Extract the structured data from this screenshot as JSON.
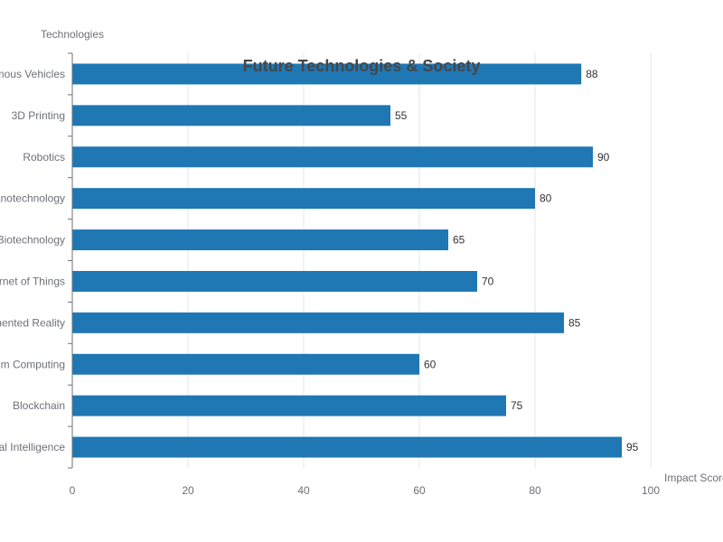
{
  "chart_data": {
    "type": "bar",
    "orientation": "horizontal",
    "title": "Future Technologies & Society",
    "xlabel": "Impact Score",
    "ylabel": "Technologies",
    "xlim": [
      0,
      100
    ],
    "x_ticks": [
      0,
      20,
      40,
      60,
      80,
      100
    ],
    "categories": [
      "Artificial Intelligence",
      "Blockchain",
      "Quantum Computing",
      "Augmented Reality",
      "Internet of Things",
      "Biotechnology",
      "Nanotechnology",
      "Robotics",
      "3D Printing",
      "Autonomous Vehicles"
    ],
    "values": [
      95,
      75,
      60,
      85,
      70,
      65,
      80,
      90,
      55,
      88
    ],
    "grid": true,
    "data_labels": true,
    "bar_color": "#1f77b4"
  }
}
